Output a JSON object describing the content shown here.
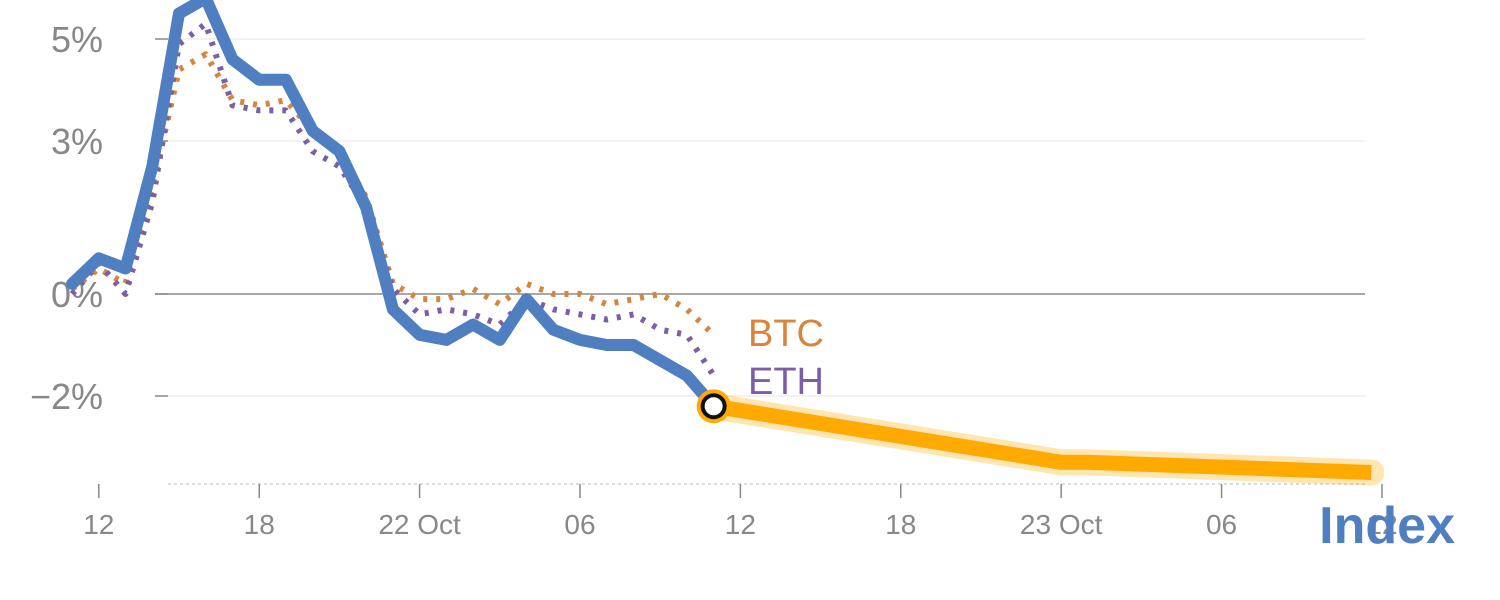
{
  "chart_data": {
    "type": "line",
    "y_unit": "%",
    "ylim": [
      -3.7,
      6.0
    ],
    "y_ticks": [
      {
        "value": 5,
        "label": "5%"
      },
      {
        "value": 3,
        "label": "3%"
      },
      {
        "value": 0,
        "label": "0%"
      },
      {
        "value": -2,
        "label": "−2%"
      }
    ],
    "x_ticks": [
      {
        "pos": 1,
        "label": "12"
      },
      {
        "pos": 7,
        "label": "18"
      },
      {
        "pos": 13,
        "label": "22 Oct"
      },
      {
        "pos": 19,
        "label": "06"
      },
      {
        "pos": 25,
        "label": "12"
      },
      {
        "pos": 31,
        "label": "18"
      },
      {
        "pos": 37,
        "label": "23 Oct"
      },
      {
        "pos": 43,
        "label": "06"
      },
      {
        "pos": 49,
        "label": "12"
      }
    ],
    "x_range": [
      -1.2,
      49.6
    ],
    "grid": true,
    "series": [
      {
        "name": "Index",
        "color": "#4f7fc0",
        "style": "solid",
        "points": [
          [
            0,
            0.2
          ],
          [
            1,
            0.7
          ],
          [
            2,
            0.5
          ],
          [
            3,
            2.5
          ],
          [
            4,
            5.5
          ],
          [
            5,
            5.8
          ],
          [
            6,
            4.6
          ],
          [
            7,
            4.2
          ],
          [
            8,
            4.2
          ],
          [
            9,
            3.2
          ],
          [
            10,
            2.8
          ],
          [
            11,
            1.7
          ],
          [
            12,
            -0.3
          ],
          [
            13,
            -0.8
          ],
          [
            14,
            -0.9
          ],
          [
            15,
            -0.6
          ],
          [
            16,
            -0.9
          ],
          [
            17,
            -0.1
          ],
          [
            18,
            -0.7
          ],
          [
            19,
            -0.9
          ],
          [
            20,
            -1.0
          ],
          [
            21,
            -1.0
          ],
          [
            22,
            -1.3
          ],
          [
            23,
            -1.6
          ],
          [
            24,
            -2.2
          ]
        ]
      },
      {
        "name": "BTC",
        "color": "#d9843b",
        "style": "dotted",
        "points": [
          [
            0,
            0.1
          ],
          [
            1,
            0.5
          ],
          [
            2,
            0.2
          ],
          [
            3,
            2.1
          ],
          [
            4,
            4.4
          ],
          [
            5,
            4.7
          ],
          [
            6,
            3.8
          ],
          [
            7,
            3.7
          ],
          [
            8,
            3.8
          ],
          [
            9,
            3.2
          ],
          [
            10,
            2.8
          ],
          [
            11,
            1.9
          ],
          [
            12,
            0.2
          ],
          [
            13,
            -0.1
          ],
          [
            14,
            -0.1
          ],
          [
            15,
            0.1
          ],
          [
            16,
            -0.2
          ],
          [
            17,
            0.2
          ],
          [
            18,
            0.0
          ],
          [
            19,
            0.0
          ],
          [
            20,
            -0.2
          ],
          [
            21,
            -0.1
          ],
          [
            22,
            0.0
          ],
          [
            23,
            -0.3
          ],
          [
            24,
            -0.8
          ]
        ]
      },
      {
        "name": "ETH",
        "color": "#7a5ea8",
        "style": "dotted",
        "points": [
          [
            0,
            0.0
          ],
          [
            1,
            0.6
          ],
          [
            2,
            0.0
          ],
          [
            3,
            1.8
          ],
          [
            4,
            4.9
          ],
          [
            5,
            5.3
          ],
          [
            6,
            3.7
          ],
          [
            7,
            3.6
          ],
          [
            8,
            3.6
          ],
          [
            9,
            2.8
          ],
          [
            10,
            2.5
          ],
          [
            11,
            1.7
          ],
          [
            12,
            0.1
          ],
          [
            13,
            -0.4
          ],
          [
            14,
            -0.3
          ],
          [
            15,
            -0.4
          ],
          [
            16,
            -0.6
          ],
          [
            17,
            -0.1
          ],
          [
            18,
            -0.3
          ],
          [
            19,
            -0.4
          ],
          [
            20,
            -0.5
          ],
          [
            21,
            -0.4
          ],
          [
            22,
            -0.7
          ],
          [
            23,
            -0.8
          ],
          [
            24,
            -1.6
          ]
        ]
      },
      {
        "name": "",
        "color": "#ffaa00",
        "style": "forecast",
        "points": [
          [
            24,
            -2.2
          ],
          [
            37,
            -3.3
          ],
          [
            38,
            -3.3
          ],
          [
            48.6,
            -3.5
          ]
        ]
      }
    ],
    "labels": [
      {
        "text": "BTC",
        "color": "#d9843b"
      },
      {
        "text": "ETH",
        "color": "#7a5ea8"
      },
      {
        "text": "Index",
        "color": "#4f7fc0"
      }
    ],
    "marker": {
      "pos": 24,
      "value": -2.2
    }
  }
}
